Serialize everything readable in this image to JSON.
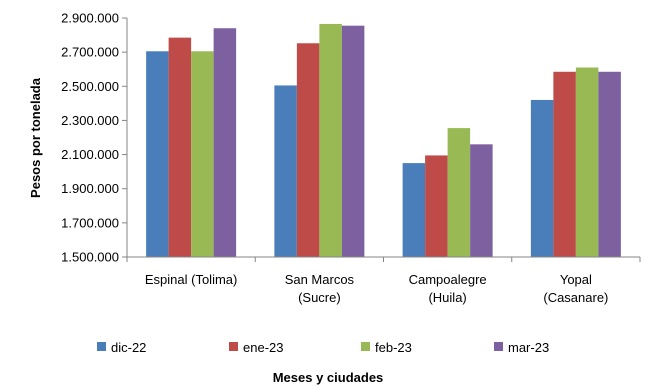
{
  "chart_data": {
    "type": "bar",
    "categories": [
      [
        "Espinal (Tolima)"
      ],
      [
        "San Marcos",
        "(Sucre)"
      ],
      [
        "Campoalegre",
        "(Huila)"
      ],
      [
        "Yopal",
        "(Casanare)"
      ]
    ],
    "series": [
      {
        "name": "dic-22",
        "color": "#4a7ebb",
        "values": [
          2705000,
          2505000,
          2050000,
          2420000
        ]
      },
      {
        "name": "ene-23",
        "color": "#be4b48",
        "values": [
          2785000,
          2752000,
          2095000,
          2585000
        ]
      },
      {
        "name": "feb-23",
        "color": "#98b954",
        "values": [
          2705000,
          2865000,
          2255000,
          2610000
        ]
      },
      {
        "name": "mar-23",
        "color": "#7d60a0",
        "values": [
          2840000,
          2855000,
          2160000,
          2585000
        ]
      }
    ],
    "xlabel": "Meses y ciudades",
    "ylabel": "Pesos por tonelada",
    "ylim": [
      1500000,
      2900000
    ],
    "yticks": [
      1500000,
      1700000,
      1900000,
      2100000,
      2300000,
      2500000,
      2700000,
      2900000
    ],
    "ytick_labels": [
      "1.500.000",
      "1.700.000",
      "1.900.000",
      "2.100.000",
      "2.300.000",
      "2.500.000",
      "2.700.000",
      "2.900.000"
    ],
    "grid": false,
    "legend": "bottom"
  }
}
